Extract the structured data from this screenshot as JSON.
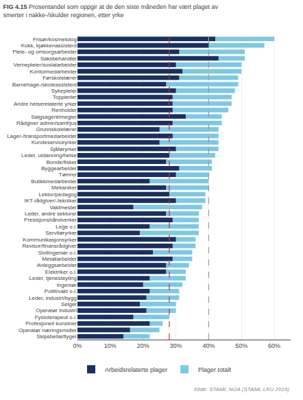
{
  "chart_data": {
    "type": "bar",
    "orientation": "horizontal",
    "stacked": false,
    "title": "FIG 4.15",
    "subtitle": "Prosentandel som oppgir at de den siste måneden har vært plaget av\nsmerter i nakke-/skulder regionen, etter yrke",
    "categories": [
      "Frisør/kosmetolog",
      "Kokk, kjøkkenassistent",
      "Pleie- og omsorgsarbeider",
      "Saksbehandler",
      "Vernepleier/sosialarbeider",
      "Kontormedarbeider",
      "Førskolelærer",
      "Barnehage-/skoleassistent",
      "Sykepleier",
      "Toppleder",
      "Andre helserelaterte yrker",
      "Renholder",
      "Salgsagent/megler",
      "Rådgiver admin/samf/jus",
      "Grunnskolelærer",
      "Lager-/transportmedarbeider",
      "Kundeserviceyrker",
      "Sjåføryrker",
      "Leder, utdanning/helse",
      "Bonde/fisker",
      "Byggearbeider",
      "Tømrer",
      "Butikkmedarbeider",
      "Mekaniker",
      "Lektor/pedagog",
      "IKT-rådgiver/-tekniker",
      "Vaktmester",
      "Leder, andre sektorer",
      "Presisjonshåndverker",
      "Lege o.l.",
      "Servitøryrker",
      "Kommunikasjonsyrker",
      "Revisor/finansrådgiver",
      "Sivilingeniør o.l.",
      "Metallarbeider",
      "Anleggsarbeider",
      "Elektriker o.l.",
      "Leder, tjenesteyting",
      "Ingeniør",
      "Politi/vakt o.l.",
      "Leder, industri/bygg",
      "Selger",
      "Operatør industri",
      "Fysioterapeut o.l.",
      "Profesjonell kunstner",
      "Operatør næringsmidler",
      "Skipsbefal/flyger"
    ],
    "series": [
      {
        "name": "Plager totalt",
        "color": "#7ec8e3",
        "values": [
          60,
          57,
          51,
          51,
          50,
          50,
          49,
          49,
          48,
          47,
          47,
          46,
          44,
          44,
          43,
          43,
          43,
          43,
          42,
          41,
          41,
          40,
          40,
          40,
          39,
          39,
          38,
          37,
          37,
          37,
          37,
          36,
          36,
          35,
          35,
          34,
          33,
          33,
          32,
          31,
          31,
          30,
          30,
          28,
          26,
          25,
          22
        ]
      },
      {
        "name": "Arbeidsrelaterte plager",
        "color": "#1b2f5e",
        "values": [
          42,
          40,
          31,
          43,
          30,
          32,
          31,
          27,
          30,
          29,
          29,
          29,
          33,
          29,
          25,
          29,
          25,
          30,
          28,
          27,
          31,
          30,
          22,
          27,
          28,
          30,
          17,
          27,
          29,
          22,
          19,
          30,
          29,
          23,
          29,
          27,
          27,
          22,
          20,
          22,
          21,
          19,
          21,
          17,
          22,
          16,
          14
        ]
      }
    ],
    "reference_lines": [
      {
        "value": 28,
        "color": "#c0392b",
        "line_style": "dashed"
      },
      {
        "value": 40,
        "color": "#999999",
        "line_style": "dashed"
      }
    ],
    "xlim": [
      0,
      65
    ],
    "xticks": [
      {
        "value": 0,
        "label": "0%"
      },
      {
        "value": 10,
        "label": "10%"
      },
      {
        "value": 20,
        "label": "20%"
      },
      {
        "value": 30,
        "label": "30%"
      },
      {
        "value": 40,
        "label": "40%"
      },
      {
        "value": 50,
        "label": "50%"
      },
      {
        "value": 60,
        "label": "60%"
      }
    ],
    "grid": true,
    "legend": "bottom",
    "annotations": [
      "Kilde: STAMI, NOA (STAMI, LKU 2016)"
    ]
  }
}
